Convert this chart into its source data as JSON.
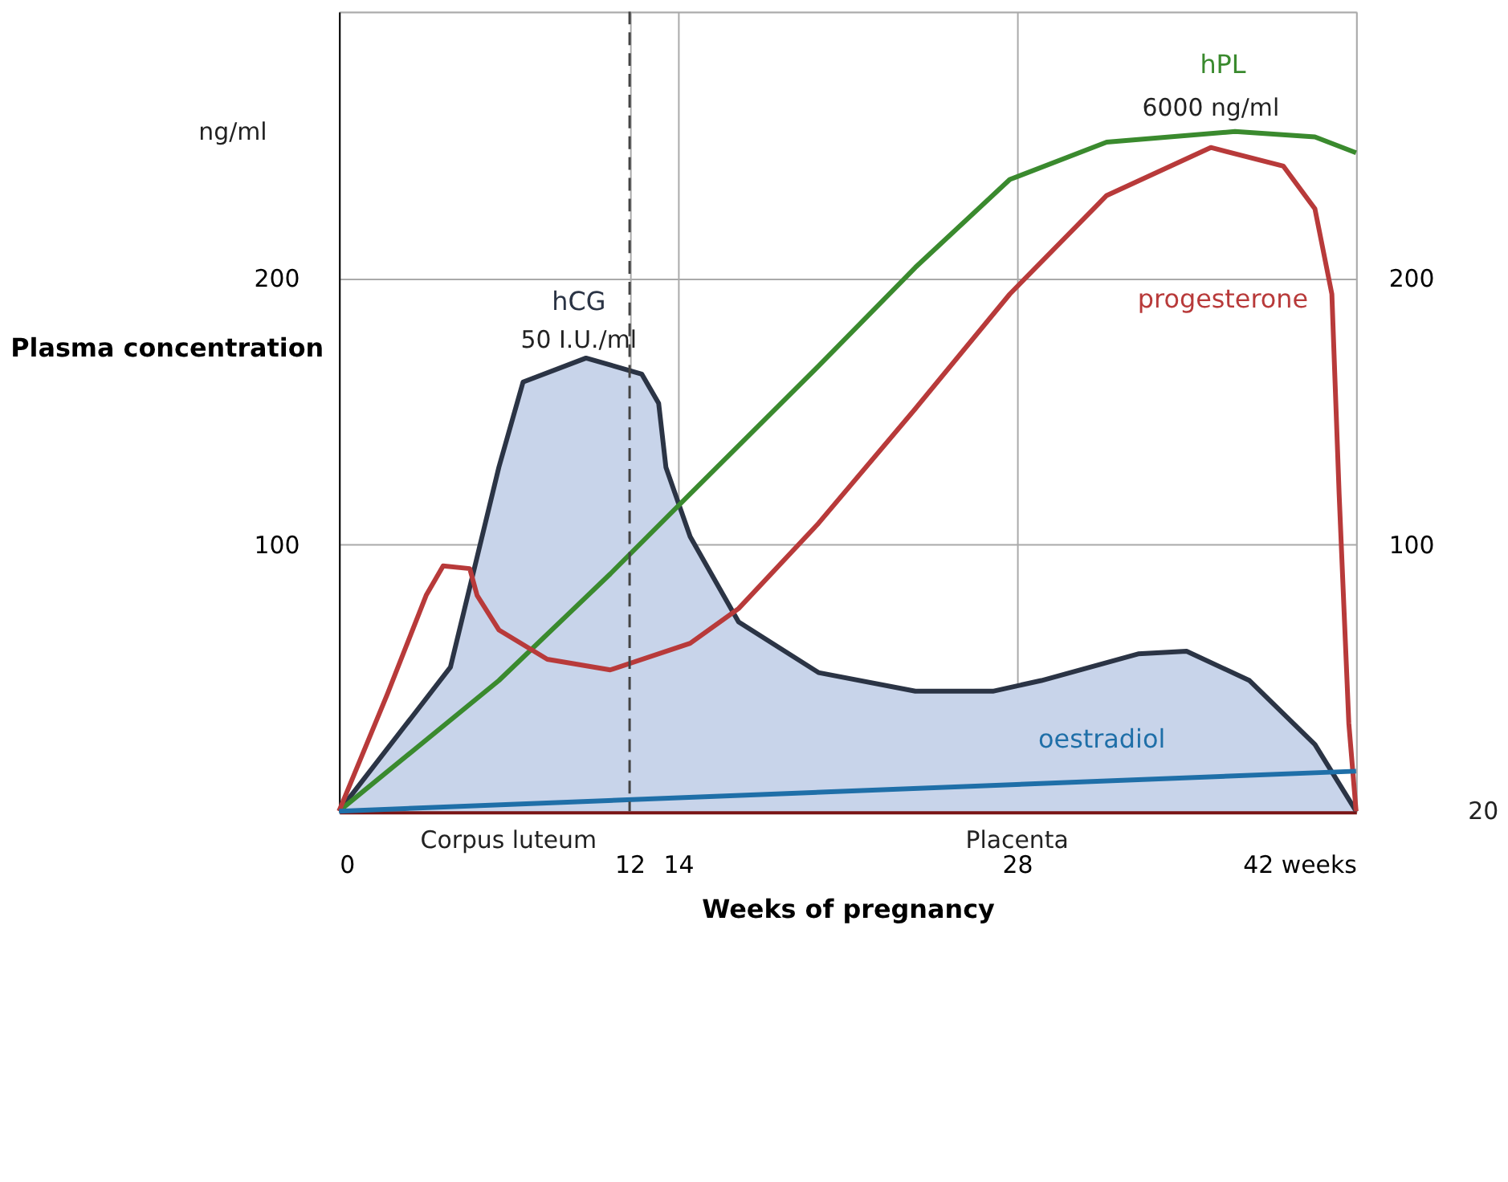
{
  "chart_data": {
    "type": "line",
    "xlabel": "Weeks of pregnancy",
    "ylabel": "Plasma concentration",
    "xlim": [
      0,
      42
    ],
    "ylim": [
      0,
      300
    ],
    "xticks": [
      0,
      12,
      14,
      28,
      {
        "value": 42,
        "label": "42 weeks"
      }
    ],
    "yticks": [
      100,
      200,
      {
        "value": 300,
        "label": null
      }
    ],
    "y2lim": [
      0,
      300
    ],
    "y2ticks": [
      100,
      200
    ],
    "grid": true,
    "legend": false,
    "marker": "none",
    "line_style": "solid",
    "series": [
      {
        "name": "hCG",
        "type": "area",
        "color": "#c8d4ea",
        "x": [
          0,
          4.6,
          6.6,
          7.6,
          10.2,
          12.5,
          13.2,
          13.5,
          14.5,
          16.5,
          19.8,
          23.8,
          27,
          29,
          33,
          35,
          37.6,
          40.3,
          42
        ],
        "values": [
          0,
          54,
          129,
          161,
          170,
          164,
          153,
          129,
          103,
          71,
          52,
          45,
          45,
          49,
          59,
          60,
          49,
          25,
          0
        ]
      },
      {
        "name": "hPL",
        "color": "#3a8a2e",
        "x": [
          0,
          6.6,
          11.2,
          14.5,
          19.8,
          23.8,
          27.7,
          31.7,
          37,
          40.3,
          42
        ],
        "values": [
          0,
          49,
          89,
          119,
          167,
          204,
          237,
          251,
          255,
          253,
          247
        ]
      },
      {
        "name": "progesterone",
        "color": "#b83a3a",
        "x": [
          0,
          2,
          3.6,
          4.3,
          5.4,
          5.7,
          6.6,
          8.6,
          11.2,
          14.5,
          16.5,
          19.8,
          23.8,
          27.7,
          31.7,
          36,
          39,
          40.3,
          41,
          41.3,
          41.7,
          42
        ],
        "values": [
          0,
          44,
          81,
          92,
          91,
          81,
          68,
          57,
          53,
          63,
          76,
          108,
          151,
          194,
          231,
          249,
          242,
          226,
          194,
          119,
          33,
          0
        ]
      },
      {
        "name": "oestradiol",
        "color": "#1f6fa8",
        "x": [
          0,
          42
        ],
        "values": [
          0,
          15
        ]
      }
    ],
    "ref_lines": [
      {
        "axis": "x",
        "value": 12,
        "line_style": "dashed",
        "color": "#444444"
      }
    ],
    "annotations": [
      "50 I.U./ml",
      "6000 ng/ml",
      "ng/ml",
      "Corpus luteum",
      "Placenta",
      "20"
    ]
  }
}
